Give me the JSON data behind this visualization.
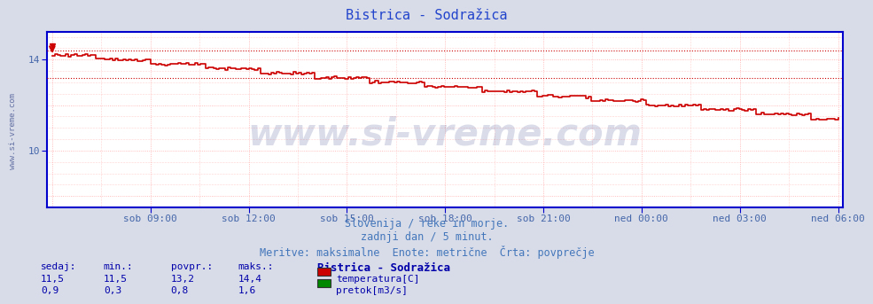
{
  "title": "Bistrica - Sodražica",
  "title_color": "#2244cc",
  "title_fontsize": 11,
  "plot_bg_color": "#ffffff",
  "fig_bg_color": "#d8dce8",
  "grid_color": "#ffaaaa",
  "grid_minor_color": "#ffcccc",
  "x_tick_labels": [
    "sob 09:00",
    "sob 12:00",
    "sob 15:00",
    "sob 18:00",
    "sob 21:00",
    "ned 00:00",
    "ned 03:00",
    "ned 06:00"
  ],
  "y_min": 7.5,
  "y_max": 15.2,
  "y_ticks": [
    10,
    14
  ],
  "subtitle1": "Slovenija / reke in morje.",
  "subtitle2": "zadnji dan / 5 minut.",
  "subtitle3": "Meritve: maksimalne  Enote: metrične  Črta: povprečje",
  "subtitle_color": "#4477bb",
  "subtitle_fontsize": 8.5,
  "axis_label_color": "#4466aa",
  "axis_label_fontsize": 8,
  "watermark": "www.si-vreme.com",
  "watermark_color": "#334488",
  "watermark_alpha": 0.18,
  "watermark_fontsize": 30,
  "sidebar_text": "www.si-vreme.com",
  "sidebar_color": "#334488",
  "sidebar_fontsize": 6.5,
  "temp_color": "#cc0000",
  "flow_color": "#008800",
  "height_color": "#0000cc",
  "temp_avg": 13.2,
  "flow_avg": 0.8,
  "temp_max": 14.4,
  "flow_max": 1.6,
  "legend_title": "Bistrica - Sodražica",
  "legend_title_color": "#0000aa",
  "legend_fontsize": 8,
  "table_labels": [
    "sedaj:",
    "min.:",
    "povpr.:",
    "maks.:"
  ],
  "table_temp": [
    "11,5",
    "11,5",
    "13,2",
    "14,4"
  ],
  "table_flow": [
    "0,9",
    "0,3",
    "0,8",
    "1,6"
  ],
  "table_color": "#0000aa",
  "table_fontsize": 8,
  "spine_color": "#0000cc",
  "arrow_color": "#cc0000"
}
